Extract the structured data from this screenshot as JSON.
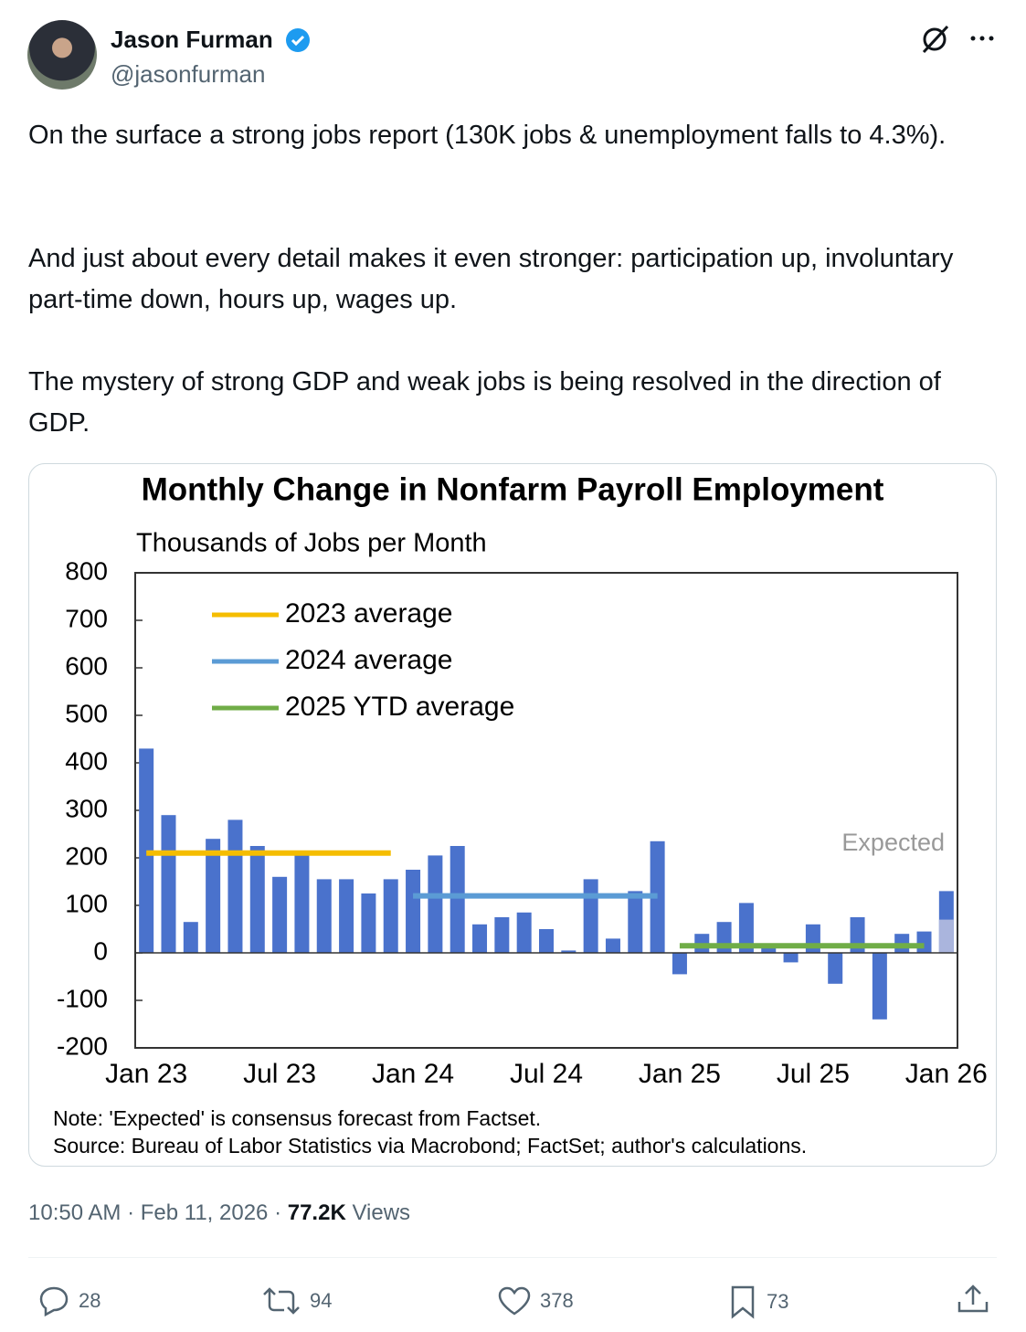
{
  "author": {
    "name": "Jason Furman",
    "handle": "@jasonfurman"
  },
  "text": [
    "On the surface a strong jobs report (130K jobs & unemployment falls to 4.3%).",
    "And just about every detail makes it even stronger: participation up, involuntary part-time down, hours up, wages up.",
    "The mystery of strong GDP and weak jobs is being resolved in the direction of GDP."
  ],
  "chart_data": {
    "type": "bar",
    "title": "Monthly Change in Nonfarm Payroll Employment",
    "subtitle": "Thousands of Jobs per Month",
    "categories": [
      "Jan 23",
      null,
      null,
      null,
      null,
      null,
      "Jul 23",
      null,
      null,
      null,
      null,
      null,
      "Jan 24",
      null,
      null,
      null,
      null,
      null,
      "Jul 24",
      null,
      null,
      null,
      null,
      null,
      "Jan 25",
      null,
      null,
      null,
      null,
      null,
      "Jul 25",
      null,
      null,
      null,
      null,
      null,
      "Jan 26"
    ],
    "values": [
      430,
      290,
      65,
      240,
      280,
      225,
      160,
      215,
      155,
      155,
      125,
      155,
      175,
      205,
      225,
      60,
      75,
      85,
      50,
      5,
      155,
      30,
      130,
      235,
      -45,
      40,
      65,
      105,
      15,
      -20,
      60,
      -65,
      75,
      -140,
      40,
      45,
      130
    ],
    "color": "#4a72cc",
    "expected_values": [
      null,
      null,
      null,
      null,
      null,
      null,
      null,
      null,
      null,
      null,
      null,
      null,
      null,
      null,
      null,
      null,
      null,
      null,
      null,
      null,
      null,
      null,
      null,
      null,
      null,
      null,
      null,
      null,
      null,
      null,
      null,
      null,
      null,
      null,
      null,
      null,
      70
    ],
    "expected_color": "#aab5dd",
    "annotation": "Expected",
    "series": [
      {
        "name": "2023 average",
        "color": "#f5bd00",
        "values": [
          210,
          210,
          210,
          210,
          210,
          210,
          210,
          210,
          210,
          210,
          210,
          210,
          null,
          null,
          null,
          null,
          null,
          null,
          null,
          null,
          null,
          null,
          null,
          null,
          null,
          null,
          null,
          null,
          null,
          null,
          null,
          null,
          null,
          null,
          null,
          null,
          null
        ]
      },
      {
        "name": "2024 average",
        "color": "#5b9bd5",
        "values": [
          null,
          null,
          null,
          null,
          null,
          null,
          null,
          null,
          null,
          null,
          null,
          null,
          120,
          120,
          120,
          120,
          120,
          120,
          120,
          120,
          120,
          120,
          120,
          120,
          null,
          null,
          null,
          null,
          null,
          null,
          null,
          null,
          null,
          null,
          null,
          null,
          null
        ]
      },
      {
        "name": "2025 YTD average",
        "color": "#70ad47",
        "values": [
          null,
          null,
          null,
          null,
          null,
          null,
          null,
          null,
          null,
          null,
          null,
          null,
          null,
          null,
          null,
          null,
          null,
          null,
          null,
          null,
          null,
          null,
          null,
          null,
          15,
          15,
          15,
          15,
          15,
          15,
          15,
          15,
          15,
          15,
          15,
          15,
          null
        ]
      }
    ],
    "ylim": [
      -200,
      800
    ],
    "yticks": [
      800,
      700,
      600,
      500,
      400,
      300,
      200,
      100,
      0,
      -100,
      -200
    ],
    "legend": "upper left",
    "notes": [
      "Note: 'Expected' is consensus forecast from Factset.",
      "Source: Bureau of Labor Statistics via Macrobond; FactSet; author's calculations."
    ]
  },
  "footer": {
    "time": "10:50 AM · Feb 11, 2026 · ",
    "views": "77.2K",
    "views_label": " Views"
  },
  "actions": {
    "replies": 28,
    "reposts": 94,
    "likes": 378,
    "bookmarks": 73
  }
}
